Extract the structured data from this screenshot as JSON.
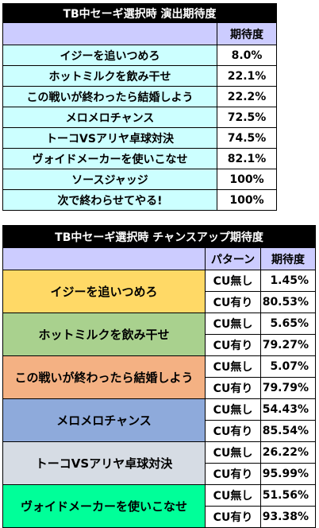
{
  "table1": {
    "title": "TB中セーギ選択時 演出期待度",
    "header_value": "期待度",
    "rows": [
      {
        "name": "イジーを追いつめろ",
        "value": "8.0%"
      },
      {
        "name": "ホットミルクを飲み干せ",
        "value": "22.1%"
      },
      {
        "name": "この戦いが終わったら結婚しよう",
        "value": "22.2%"
      },
      {
        "name": "メロメロチャンス",
        "value": "72.5%"
      },
      {
        "name": "トーコVSアリヤ卓球対決",
        "value": "74.5%"
      },
      {
        "name": "ヴォイドメーカーを使いこなせ",
        "value": "82.1%"
      },
      {
        "name": "ソースジャッジ",
        "value": "100%"
      },
      {
        "name": "次で終わらせてやる!",
        "value": "100%"
      }
    ]
  },
  "table2": {
    "title": "TB中セーギ選択時 チャンスアップ期待度",
    "header_pattern": "パターン",
    "header_value": "期待度",
    "groups": [
      {
        "name": "イジーを追いつめろ",
        "color": "#ffd966",
        "rows": [
          {
            "pattern": "CU無し",
            "value": "1.45%"
          },
          {
            "pattern": "CU有り",
            "value": "80.53%"
          }
        ]
      },
      {
        "name": "ホットミルクを飲み干せ",
        "color": "#a9d18e",
        "rows": [
          {
            "pattern": "CU無し",
            "value": "5.65%"
          },
          {
            "pattern": "CU有り",
            "value": "79.27%"
          }
        ]
      },
      {
        "name": "この戦いが終わったら結婚しよう",
        "color": "#f4b183",
        "rows": [
          {
            "pattern": "CU無し",
            "value": "5.07%"
          },
          {
            "pattern": "CU有り",
            "value": "79.79%"
          }
        ]
      },
      {
        "name": "メロメロチャンス",
        "color": "#8eaadb",
        "rows": [
          {
            "pattern": "CU無し",
            "value": "54.43%"
          },
          {
            "pattern": "CU有り",
            "value": "85.54%"
          }
        ]
      },
      {
        "name": "トーコVSアリヤ卓球対決",
        "color": "#d6dce4",
        "rows": [
          {
            "pattern": "CU無し",
            "value": "26.22%"
          },
          {
            "pattern": "CU有り",
            "value": "95.99%"
          }
        ]
      },
      {
        "name": "ヴォイドメーカーを使いこなせ",
        "color": "#00ff99",
        "rows": [
          {
            "pattern": "CU無し",
            "value": "51.56%"
          },
          {
            "pattern": "CU有り",
            "value": "93.38%"
          }
        ]
      }
    ]
  }
}
